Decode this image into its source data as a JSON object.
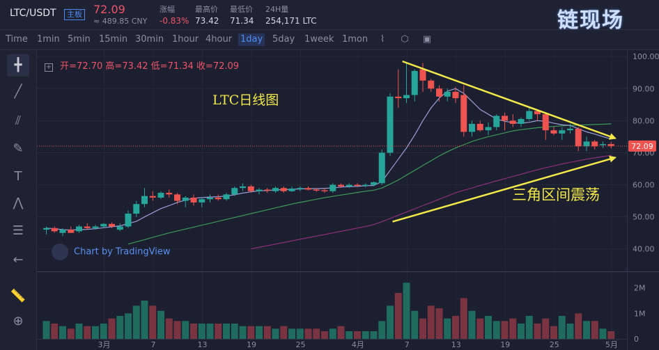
{
  "header": {
    "pair": "LTC/USDT",
    "board": "主板",
    "price": "72.09",
    "cny": "≈ 489.85 CNY",
    "stats": [
      {
        "label": "涨幅",
        "value": "-0.83%"
      },
      {
        "label": "最高价",
        "value": "73.42"
      },
      {
        "label": "最低价",
        "value": "71.34"
      },
      {
        "label": "24H量",
        "value": "254,171 LTC"
      }
    ]
  },
  "toolbar": {
    "timeframes": [
      "Time",
      "1min",
      "5min",
      "15min",
      "30min",
      "1hour",
      "4hour",
      "1day",
      "5day",
      "1week",
      "1mon"
    ],
    "active": "1day",
    "icons": [
      "chart-type-icon",
      "indicators-icon",
      "screenshot-icon"
    ]
  },
  "left_tools": [
    "crosshair-icon",
    "trendline-icon",
    "pitchfork-icon",
    "brush-icon",
    "text-icon",
    "pattern-icon",
    "fib-icon",
    "back-arrow-icon",
    "ruler-icon",
    "zoom-icon"
  ],
  "ohlc": {
    "open_label": "开=",
    "open": "72.70",
    "high_label": "高=",
    "high": "73.42",
    "low_label": "低=",
    "low": "71.34",
    "close_label": "收=",
    "close": "72.09"
  },
  "annotations": {
    "title": "LTC日线图",
    "pattern": "三角区间震荡"
  },
  "watermark": "Chart by TradingView",
  "logo": "链现场",
  "colors": {
    "up": "#26a69a",
    "down": "#ef5350",
    "bg": "#1b1f2f",
    "annotation": "#f2e84a",
    "ma_fast": "#9aa0d8",
    "ma_mid": "#3f9a5a",
    "ma_slow": "#8e2f7d"
  },
  "chart_data": {
    "type": "candlestick",
    "y_ticks": [
      "100.00",
      "90.00",
      "80.00",
      "70.00",
      "60.00",
      "50.00",
      "40.00"
    ],
    "ylim": [
      33,
      102
    ],
    "last_price": "72.09",
    "vol_ticks": [
      "2M",
      "1M",
      "0"
    ],
    "x_ticks": [
      "3月",
      "7",
      "13",
      "19",
      "25",
      "4月",
      "7",
      "13",
      "19",
      "25",
      "5月"
    ],
    "candles": [
      [
        46,
        47,
        44.5,
        46.5,
        0.7
      ],
      [
        46.5,
        47,
        45,
        45.5,
        0.6
      ],
      [
        45,
        46.5,
        44,
        46,
        0.5
      ],
      [
        46,
        47,
        45,
        45,
        0.4
      ],
      [
        45.5,
        47.5,
        45,
        47,
        0.6
      ],
      [
        47,
        48,
        46,
        46.5,
        0.5
      ],
      [
        46.5,
        47.5,
        46,
        47,
        0.5
      ],
      [
        47,
        48,
        46.5,
        47.8,
        0.6
      ],
      [
        47.8,
        48.3,
        46.5,
        47,
        0.8
      ],
      [
        46,
        48,
        45.5,
        47,
        0.9
      ],
      [
        47,
        52,
        46.5,
        51,
        1.0
      ],
      [
        51,
        55,
        50,
        54,
        1.3
      ],
      [
        54,
        59,
        53,
        56.5,
        1.5
      ],
      [
        56.5,
        58,
        55,
        56,
        1.3
      ],
      [
        56,
        58,
        55.5,
        57.5,
        1.1
      ],
      [
        57.5,
        58.5,
        56,
        57,
        0.8
      ],
      [
        57,
        57.5,
        54,
        55,
        0.7
      ],
      [
        55,
        56.5,
        53,
        56,
        0.7
      ],
      [
        56,
        57,
        53.5,
        54.5,
        0.6
      ],
      [
        54.5,
        56,
        53,
        55.5,
        0.6
      ],
      [
        55.5,
        57,
        54.5,
        56,
        0.6
      ],
      [
        56,
        57,
        55,
        55.5,
        0.6
      ],
      [
        55.5,
        57.5,
        55,
        57,
        0.6
      ],
      [
        57,
        59.5,
        56.5,
        59,
        0.6
      ],
      [
        59,
        60.5,
        58,
        59.5,
        0.5
      ],
      [
        59.5,
        60,
        57.5,
        58,
        0.5
      ],
      [
        58,
        59,
        57,
        58.5,
        0.5
      ],
      [
        58.5,
        59,
        57.5,
        58.2,
        0.5
      ],
      [
        58,
        59.5,
        57.5,
        59,
        0.4
      ],
      [
        59,
        59.5,
        57.5,
        58,
        0.5
      ],
      [
        58,
        59.5,
        57.8,
        58.8,
        0.4
      ],
      [
        58.8,
        59.5,
        58,
        59,
        0.4
      ],
      [
        59,
        59.5,
        58.2,
        58.5,
        0.4
      ],
      [
        58.5,
        59,
        57.8,
        58.3,
        0.4
      ],
      [
        58.3,
        59,
        57.5,
        58,
        0.3
      ],
      [
        58,
        60.5,
        57.5,
        60,
        0.4
      ],
      [
        60,
        60.5,
        59,
        59.5,
        0.5
      ],
      [
        59.5,
        60.5,
        59,
        60,
        0.3
      ],
      [
        60,
        60.5,
        59.5,
        59.8,
        0.3
      ],
      [
        59.8,
        60.5,
        59.2,
        60,
        0.3
      ],
      [
        60,
        61,
        59.5,
        60.8,
        0.3
      ],
      [
        60.5,
        71,
        60,
        70,
        0.7
      ],
      [
        70,
        88.5,
        69,
        87.5,
        1.3
      ],
      [
        87.5,
        96,
        84,
        87,
        1.8
      ],
      [
        87,
        98,
        85.5,
        88,
        2.2
      ],
      [
        88,
        96,
        86,
        95.5,
        1.1
      ],
      [
        96,
        98,
        89,
        92.5,
        0.8
      ],
      [
        92.5,
        93,
        89,
        90,
        1.3
      ],
      [
        90,
        91,
        86,
        87.5,
        1.2
      ],
      [
        87.5,
        90,
        86,
        89,
        0.8
      ],
      [
        89,
        90.5,
        85.5,
        87,
        0.9
      ],
      [
        88,
        91,
        75,
        76.5,
        1.6
      ],
      [
        76.5,
        80,
        75,
        79,
        1.1
      ],
      [
        79,
        80,
        76.5,
        77,
        0.8
      ],
      [
        77,
        79.5,
        75.5,
        78,
        0.9
      ],
      [
        78,
        82,
        77,
        81.5,
        0.7
      ],
      [
        81.5,
        82.5,
        77,
        80,
        0.7
      ],
      [
        80,
        82,
        78,
        79,
        0.8
      ],
      [
        79,
        81,
        78,
        80.5,
        0.6
      ],
      [
        80.5,
        84,
        80,
        83,
        0.9
      ],
      [
        83,
        83.5,
        80,
        82,
        0.6
      ],
      [
        82,
        82.5,
        74,
        77,
        0.8
      ],
      [
        77,
        78,
        75.5,
        76,
        0.5
      ],
      [
        76,
        78,
        74,
        77,
        0.9
      ],
      [
        77,
        79,
        76,
        77.5,
        0.6
      ],
      [
        77.5,
        78,
        70.5,
        72,
        1.0
      ],
      [
        72,
        75,
        70.5,
        73.5,
        0.7
      ],
      [
        73.5,
        74,
        71,
        72,
        0.7
      ],
      [
        72.5,
        73.5,
        71.5,
        72.7,
        0.4
      ],
      [
        72.7,
        73.42,
        71.34,
        72.09,
        0.3
      ]
    ],
    "ma_fast": [
      46.5,
      46.3,
      46,
      45.9,
      46,
      46.1,
      46.3,
      46.6,
      46.9,
      47.2,
      47.9,
      48.6,
      50,
      51.3,
      52.6,
      53.5,
      54.5,
      55.2,
      55.8,
      56,
      56.2,
      56.3,
      56.5,
      56.9,
      57.4,
      57.8,
      58.1,
      58.2,
      58.4,
      58.5,
      58.6,
      58.7,
      58.8,
      58.8,
      58.9,
      59,
      59.3,
      59.4,
      59.5,
      59.7,
      59.8,
      61,
      64.5,
      68,
      71.5,
      75.5,
      80,
      84,
      87,
      89.2,
      90,
      88.5,
      86,
      83.5,
      82,
      80.5,
      79.8,
      79.4,
      79.2,
      79.5,
      80,
      79.8,
      79.2,
      78.7,
      78.5,
      77.5,
      76.5,
      75.8,
      75,
      74.3
    ],
    "ma_mid": [
      null,
      null,
      null,
      null,
      null,
      null,
      null,
      null,
      null,
      null,
      41.5,
      42.2,
      42.9,
      43.6,
      44.3,
      45,
      45.6,
      46.2,
      46.8,
      47.4,
      48,
      48.6,
      49.2,
      49.8,
      50.4,
      51,
      51.6,
      52.2,
      52.8,
      53.4,
      54,
      54.5,
      55,
      55.5,
      56,
      56.4,
      56.8,
      57.2,
      57.6,
      58,
      58.3,
      59,
      60.2,
      61.5,
      63,
      64.5,
      66,
      67.5,
      69,
      70.3,
      71.5,
      72.5,
      73.5,
      74.3,
      75,
      75.6,
      76.2,
      76.8,
      77.2,
      77.5,
      77.8,
      78,
      78.2,
      78.4,
      78.5,
      78.6,
      78.7,
      78.8,
      78.9,
      79
    ],
    "ma_slow": [
      null,
      null,
      null,
      null,
      null,
      null,
      null,
      null,
      null,
      null,
      null,
      null,
      null,
      null,
      null,
      null,
      null,
      null,
      null,
      null,
      null,
      null,
      null,
      null,
      null,
      40,
      40.5,
      41,
      41.5,
      42,
      42.5,
      43,
      43.5,
      44,
      44.5,
      45,
      45.5,
      46,
      46.5,
      47,
      47.6,
      48.5,
      49.5,
      50.5,
      51.5,
      52.5,
      53.5,
      54.5,
      55.5,
      56.5,
      57.5,
      58.3,
      59,
      59.8,
      60.5,
      61.2,
      61.9,
      62.6,
      63.3,
      64,
      64.7,
      65.3,
      65.9,
      66.5,
      67,
      67.5,
      68,
      68.4,
      68.8,
      69.2
    ],
    "trendlines": [
      {
        "from_day": 43.5,
        "from_price": 98.5,
        "to_day": 69.5,
        "to_price": 74.5
      },
      {
        "from_day": 42.3,
        "from_price": 48.5,
        "to_day": 69.5,
        "to_price": 68.5
      }
    ]
  }
}
